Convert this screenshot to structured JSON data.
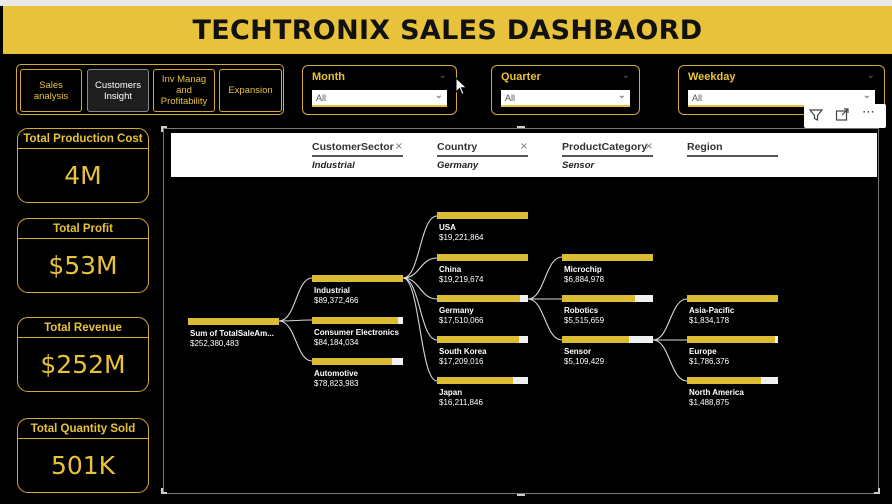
{
  "header": {
    "title": "TECHTRONIX SALES DASHBAORD"
  },
  "nav": {
    "buttons": [
      {
        "label": "Sales analysis"
      },
      {
        "label": "Customers Insight"
      },
      {
        "label": "Inv Manag and Profitability"
      },
      {
        "label": "Expansion"
      }
    ]
  },
  "slicers": [
    {
      "title": "Month",
      "value": "All"
    },
    {
      "title": "Quarter",
      "value": "All"
    },
    {
      "title": "Weekday",
      "value": "All"
    }
  ],
  "kpis": [
    {
      "label": "Total Production Cost",
      "value": "4M"
    },
    {
      "label": "Total Profit",
      "value": "$53M"
    },
    {
      "label": "Total Revenue",
      "value": "$252M"
    },
    {
      "label": "Total Quantity Sold",
      "value": "501K"
    }
  ],
  "tree": {
    "filters": [
      {
        "name": "CustomerSector",
        "value": "Industrial"
      },
      {
        "name": "Country",
        "value": "Germany"
      },
      {
        "name": "ProductCategory",
        "value": "Sensor"
      },
      {
        "name": "Region",
        "value": ""
      }
    ],
    "root": {
      "label": "Sum of TotalSaleAm...",
      "value": "$252,380,483",
      "fill": 1.0
    },
    "sectors": [
      {
        "label": "Industrial",
        "value": "$89,372,466",
        "fill": 1.0
      },
      {
        "label": "Consumer Electronics",
        "value": "$84,184,034",
        "fill": 0.94
      },
      {
        "label": "Automotive",
        "value": "$78,823,983",
        "fill": 0.88
      }
    ],
    "countries": [
      {
        "label": "USA",
        "value": "$19,221,864",
        "fill": 1.0
      },
      {
        "label": "China",
        "value": "$19,219,674",
        "fill": 1.0
      },
      {
        "label": "Germany",
        "value": "$17,510,066",
        "fill": 0.91
      },
      {
        "label": "South Korea",
        "value": "$17,209,016",
        "fill": 0.9
      },
      {
        "label": "Japan",
        "value": "$16,211,846",
        "fill": 0.84
      }
    ],
    "categories": [
      {
        "label": "Microchip",
        "value": "$6,884,978",
        "fill": 1.0
      },
      {
        "label": "Robotics",
        "value": "$5,515,659",
        "fill": 0.8
      },
      {
        "label": "Sensor",
        "value": "$5,109,429",
        "fill": 0.74
      }
    ],
    "regions": [
      {
        "label": "Asia-Pacific",
        "value": "$1,834,178",
        "fill": 1.0
      },
      {
        "label": "Europe",
        "value": "$1,786,376",
        "fill": 0.97
      },
      {
        "label": "North America",
        "value": "$1,488,875",
        "fill": 0.81
      }
    ]
  },
  "colors": {
    "accent": "#e7c23a",
    "bar": "#dcbc35",
    "background": "#000000"
  }
}
